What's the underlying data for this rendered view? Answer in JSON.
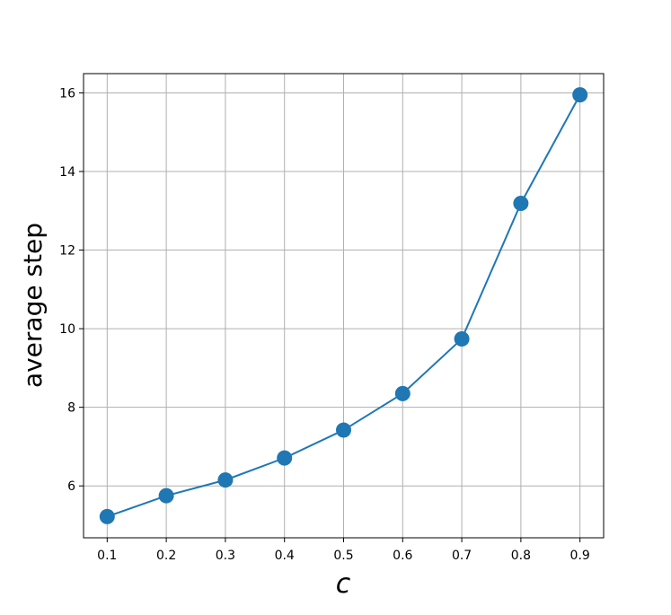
{
  "chart_data": {
    "type": "line",
    "x_label": "c",
    "y_label": "average step",
    "x": [
      0.1,
      0.2,
      0.3,
      0.4,
      0.5,
      0.6,
      0.7,
      0.8,
      0.9
    ],
    "series": [
      {
        "color": "#1f77b4",
        "values": [
          5.22,
          5.75,
          6.15,
          6.71,
          7.42,
          8.35,
          9.74,
          13.19,
          15.95
        ]
      }
    ],
    "xlim": [
      0.06,
      0.94
    ],
    "ylim": [
      4.68,
      16.49
    ],
    "xticks": [
      0.1,
      0.2,
      0.3,
      0.4,
      0.5,
      0.6,
      0.7,
      0.8,
      0.9
    ],
    "yticks": [
      6,
      8,
      10,
      12,
      14,
      16
    ],
    "grid": true
  }
}
